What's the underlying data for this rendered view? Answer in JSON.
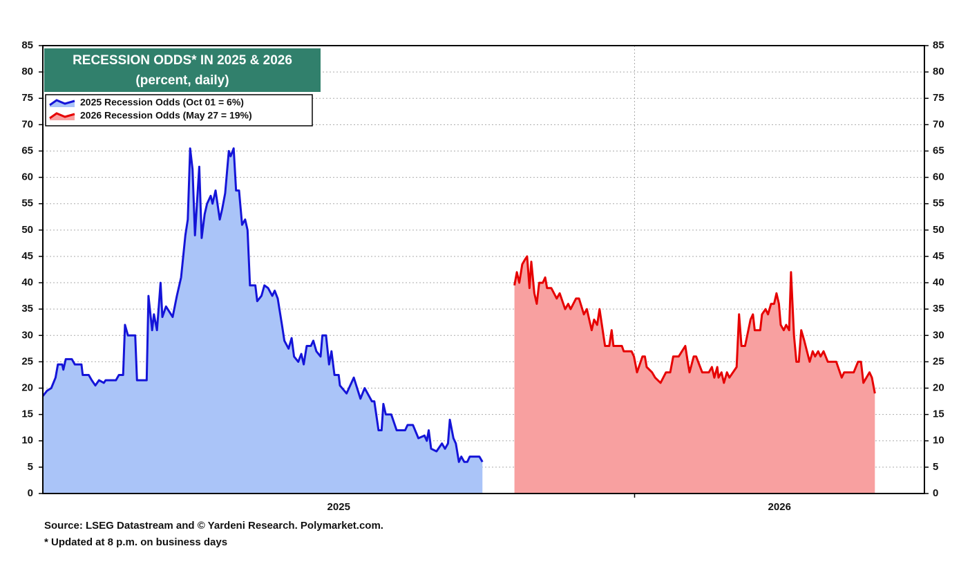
{
  "chart_data": {
    "type": "area",
    "title": "RECESSION ODDS* IN 2025 & 2026",
    "subtitle": "(percent, daily)",
    "notes": [
      "Source: LSEG Datastream and © Yardeni Research. Polymarket.com.",
      "* Updated at 8 p.m. on business days"
    ],
    "legend": "upper left",
    "grid": true,
    "title_color": "#31806c",
    "xlim": [
      2025.02,
      2026.48
    ],
    "xticks": [
      {
        "value": 2025,
        "label": "2025"
      },
      {
        "value": 2026,
        "label": "2026"
      }
    ],
    "ylim": [
      0,
      85
    ],
    "yticks": [
      0,
      5,
      10,
      15,
      20,
      25,
      30,
      35,
      40,
      45,
      50,
      55,
      60,
      65,
      70,
      75,
      80,
      85
    ],
    "series": [
      {
        "name": "2025 Recession Odds (Oct 01 = 6%)",
        "color": "#1414d8",
        "fill": "#aac4f8",
        "x": [
          2025.02,
          2025.027,
          2025.034,
          2025.041,
          2025.045,
          2025.052,
          2025.054,
          2025.058,
          2025.068,
          2025.073,
          2025.084,
          2025.086,
          2025.096,
          2025.101,
          2025.107,
          2025.113,
          2025.121,
          2025.124,
          2025.141,
          2025.146,
          2025.153,
          2025.156,
          2025.161,
          2025.173,
          2025.176,
          2025.192,
          2025.195,
          2025.201,
          2025.204,
          2025.209,
          2025.215,
          2025.218,
          2025.224,
          2025.235,
          2025.242,
          2025.249,
          2025.256,
          2025.26,
          2025.264,
          2025.268,
          2025.272,
          2025.279,
          2025.283,
          2025.288,
          2025.292,
          2025.298,
          2025.301,
          2025.306,
          2025.313,
          2025.317,
          2025.322,
          2025.328,
          2025.331,
          2025.336,
          2025.34,
          2025.345,
          2025.35,
          2025.355,
          2025.359,
          2025.363,
          2025.372,
          2025.375,
          2025.382,
          2025.387,
          2025.393,
          2025.4,
          2025.404,
          2025.409,
          2025.416,
          2025.42,
          2025.427,
          2025.432,
          2025.436,
          2025.443,
          2025.448,
          2025.452,
          2025.457,
          2025.464,
          2025.468,
          2025.473,
          2025.48,
          2025.483,
          2025.489,
          2025.494,
          2025.498,
          2025.503,
          2025.51,
          2025.512,
          2025.523,
          2025.535,
          2025.546,
          2025.553,
          2025.565,
          2025.569,
          2025.576,
          2025.581,
          2025.584,
          2025.588,
          2025.597,
          2025.606,
          2025.62,
          2025.624,
          2025.633,
          2025.642,
          2025.652,
          2025.656,
          2025.659,
          2025.663,
          2025.672,
          2025.681,
          2025.686,
          2025.691,
          2025.694,
          2025.7,
          2025.704,
          2025.709,
          2025.713,
          2025.718,
          2025.723,
          2025.727,
          2025.743,
          2025.748
        ],
        "values": [
          18.5,
          19.5,
          20,
          22,
          24.5,
          24.5,
          23.5,
          25.5,
          25.5,
          24.5,
          24.5,
          22.5,
          22.5,
          21.5,
          20.5,
          21.5,
          21,
          21.5,
          21.5,
          22.5,
          22.5,
          32,
          30,
          30,
          21.5,
          21.5,
          37.5,
          31,
          34,
          31,
          40,
          33.5,
          35.5,
          33.5,
          37.5,
          41,
          49,
          52,
          65.5,
          61.5,
          49,
          62,
          48.5,
          53,
          55,
          56.5,
          55,
          57.5,
          52,
          54,
          57,
          65,
          64,
          65.5,
          57.5,
          57.5,
          51,
          52,
          50,
          39.5,
          39.5,
          36.5,
          37.5,
          39.5,
          39,
          37.5,
          38.5,
          37,
          32,
          29,
          27.5,
          29.5,
          26,
          25,
          26.5,
          24.5,
          28,
          28,
          29,
          27,
          26,
          30,
          30,
          24.5,
          27,
          22.5,
          22.5,
          20.5,
          19,
          22,
          18,
          20,
          17.5,
          17.5,
          12,
          12,
          17,
          15,
          15,
          12,
          12,
          13,
          13,
          10.5,
          11,
          10,
          12,
          8.5,
          8,
          9.5,
          8.5,
          9.5,
          14,
          10.5,
          9.5,
          6,
          7,
          6,
          6,
          7,
          7,
          6
        ]
      },
      {
        "name": "2026 Recession Odds (May 27 = 19%)",
        "color": "#e60000",
        "fill": "#f8a0a0",
        "x": [
          2025.801,
          2025.805,
          2025.809,
          2025.814,
          2025.819,
          2025.822,
          2025.826,
          2025.829,
          2025.834,
          2025.838,
          2025.842,
          2025.848,
          2025.852,
          2025.855,
          2025.862,
          2025.871,
          2025.876,
          2025.885,
          2025.89,
          2025.894,
          2025.903,
          2025.908,
          2025.916,
          2025.921,
          2025.929,
          2025.933,
          2025.938,
          2025.942,
          2025.951,
          2025.958,
          2025.962,
          2025.965,
          2025.979,
          2025.982,
          2025.995,
          2025.999,
          2026.004,
          2026.013,
          2026.017,
          2026.02,
          2026.029,
          2026.034,
          2026.043,
          2026.052,
          2026.059,
          2026.064,
          2026.073,
          2026.084,
          2026.088,
          2026.091,
          2026.098,
          2026.102,
          2026.112,
          2026.123,
          2026.128,
          2026.132,
          2026.137,
          2026.139,
          2026.144,
          2026.148,
          2026.153,
          2026.157,
          2026.169,
          2026.173,
          2026.177,
          2026.183,
          2026.192,
          2026.196,
          2026.199,
          2026.208,
          2026.211,
          2026.217,
          2026.221,
          2026.226,
          2026.231,
          2026.235,
          2026.239,
          2026.242,
          2026.247,
          2026.251,
          2026.256,
          2026.259,
          2026.264,
          2026.268,
          2026.272,
          2026.276,
          2026.281,
          2026.29,
          2026.295,
          2026.299,
          2026.304,
          2026.308,
          2026.313,
          2026.32,
          2026.334,
          2026.343,
          2026.347,
          2026.363,
          2026.37,
          2026.375,
          2026.379,
          2026.384,
          2026.389,
          2026.393,
          2026.398
        ],
        "values": [
          39.5,
          42,
          40,
          43.5,
          44.5,
          45,
          39,
          44,
          38,
          36,
          40,
          40,
          41,
          39,
          39,
          37,
          38,
          35,
          36,
          35,
          37,
          37,
          34,
          35,
          31,
          33,
          32,
          35,
          28,
          28,
          31,
          28,
          28,
          27,
          27,
          26,
          23,
          26,
          26,
          24,
          23,
          22,
          21,
          23,
          23,
          26,
          26,
          28,
          25,
          23,
          26,
          26,
          23,
          23,
          24,
          22,
          24,
          22,
          23,
          21,
          23,
          22,
          24,
          34,
          28,
          28,
          33,
          34,
          31,
          31,
          34,
          35,
          34,
          36,
          36,
          38,
          36,
          32,
          31,
          32,
          31,
          42,
          30,
          25,
          25,
          31,
          29,
          25,
          27,
          26,
          27,
          26,
          27,
          25,
          25,
          22,
          23,
          23,
          25,
          25,
          21,
          22,
          23,
          22,
          19
        ]
      }
    ]
  }
}
